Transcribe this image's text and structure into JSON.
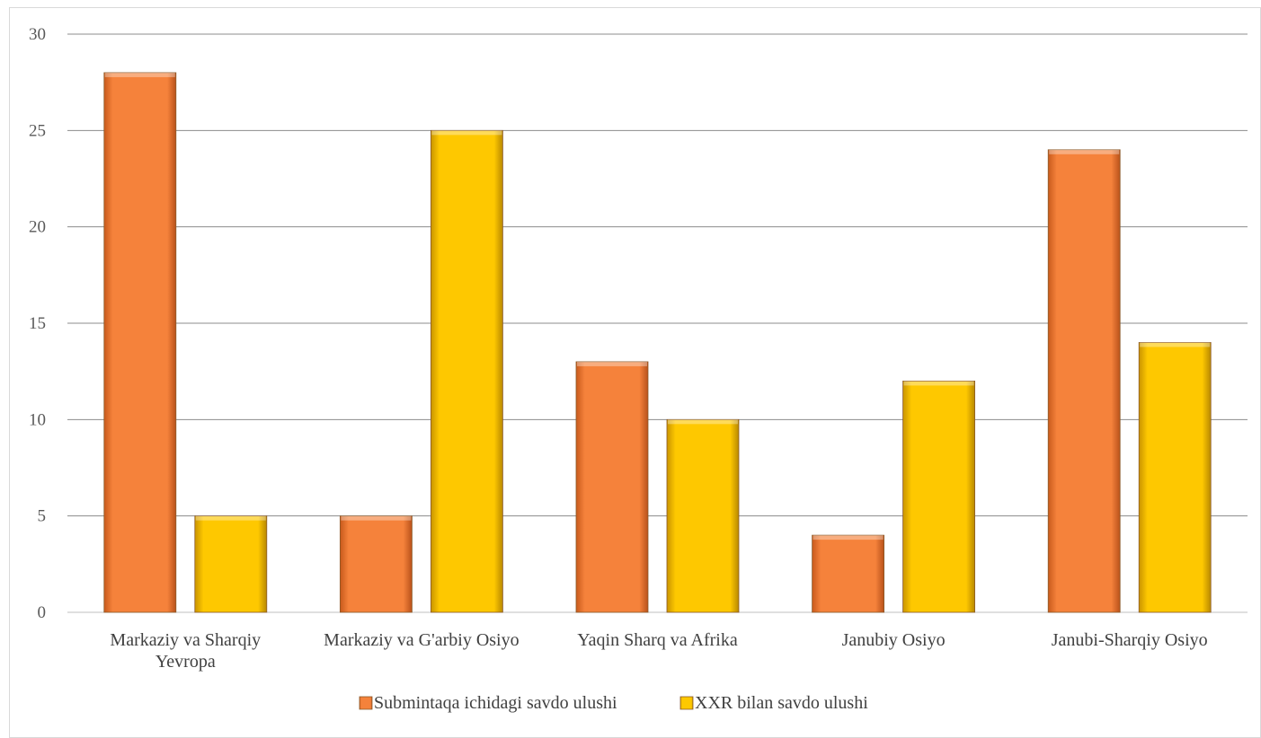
{
  "chart_data": {
    "type": "bar",
    "title": "",
    "xlabel": "",
    "ylabel": "",
    "ylim": [
      0,
      30
    ],
    "yticks": [
      0,
      5,
      10,
      15,
      20,
      25,
      30
    ],
    "grid": true,
    "legend_position": "bottom",
    "categories": [
      [
        "Markaziy va Sharqiy",
        "Yevropa"
      ],
      [
        "Markaziy va G'arbiy Osiyo"
      ],
      [
        "Yaqin Sharq va Afrika"
      ],
      [
        "Janubiy Osiyo"
      ],
      [
        "Janubi-Sharqiy Osiyo"
      ]
    ],
    "series": [
      {
        "name": "Submintaqa ichidagi savdo ulushi",
        "color": "#f5823b",
        "values": [
          28,
          5,
          13,
          4,
          24
        ]
      },
      {
        "name": "XXR bilan savdo ulushi",
        "color": "#fec800",
        "values": [
          5,
          25,
          10,
          12,
          14
        ]
      }
    ]
  }
}
